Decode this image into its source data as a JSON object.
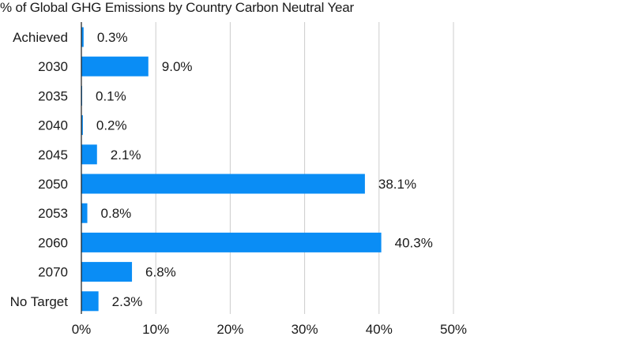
{
  "chart_data": {
    "type": "bar",
    "orientation": "horizontal",
    "title": "% of Global GHG Emissions by Country Carbon Neutral Year",
    "categories": [
      "Achieved",
      "2030",
      "2035",
      "2040",
      "2045",
      "2050",
      "2053",
      "2060",
      "2070",
      "No Target"
    ],
    "values": [
      0.3,
      9.0,
      0.1,
      0.2,
      2.1,
      38.1,
      0.8,
      40.3,
      6.8,
      2.3
    ],
    "value_labels": [
      "0.3%",
      "9.0%",
      "0.1%",
      "0.2%",
      "2.1%",
      "38.1%",
      "0.8%",
      "40.3%",
      "6.8%",
      "2.3%"
    ],
    "xlim": [
      0,
      50
    ],
    "xticks": [
      0,
      10,
      20,
      30,
      40,
      50
    ],
    "xtick_labels": [
      "0%",
      "10%",
      "20%",
      "30%",
      "40%",
      "50%"
    ],
    "xlabel": "",
    "ylabel": "",
    "grid": "vertical",
    "bar_color": "#0a8df5",
    "grid_color": "#cccccc",
    "axis_color": "#1a1a1a"
  }
}
